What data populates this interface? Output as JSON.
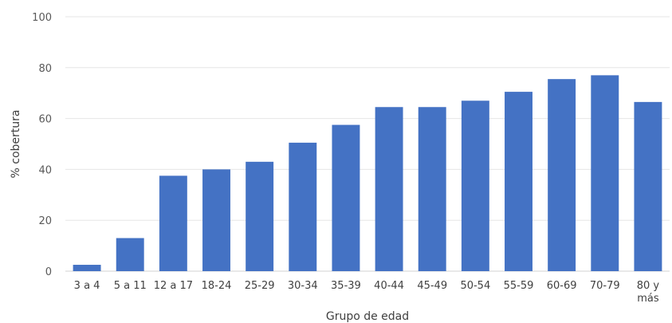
{
  "chart_data": {
    "type": "bar",
    "title": "",
    "xlabel": "Grupo de edad",
    "ylabel": "% cobertura",
    "ylim": [
      0,
      100
    ],
    "yticks": [
      0,
      20,
      40,
      60,
      80,
      100
    ],
    "grid": true,
    "legend": "none",
    "bar_color": "#4472C4",
    "categories": [
      "3 a 4",
      "5 a 11",
      "12 a 17",
      "18-24",
      "25-29",
      "30-34",
      "35-39",
      "40-44",
      "45-49",
      "50-54",
      "55-59",
      "60-69",
      "70-79",
      "80 y más"
    ],
    "category_lines": [
      [
        "3 a 4"
      ],
      [
        "5 a 11"
      ],
      [
        "12 a 17"
      ],
      [
        "18-24"
      ],
      [
        "25-29"
      ],
      [
        "30-34"
      ],
      [
        "35-39"
      ],
      [
        "40-44"
      ],
      [
        "45-49"
      ],
      [
        "50-54"
      ],
      [
        "55-59"
      ],
      [
        "60-69"
      ],
      [
        "70-79"
      ],
      [
        "80 y",
        "más"
      ]
    ],
    "values": [
      2.5,
      13,
      37.5,
      40,
      43,
      50.5,
      57.5,
      64.5,
      64.5,
      67,
      70.5,
      75.5,
      77,
      66.5
    ]
  }
}
